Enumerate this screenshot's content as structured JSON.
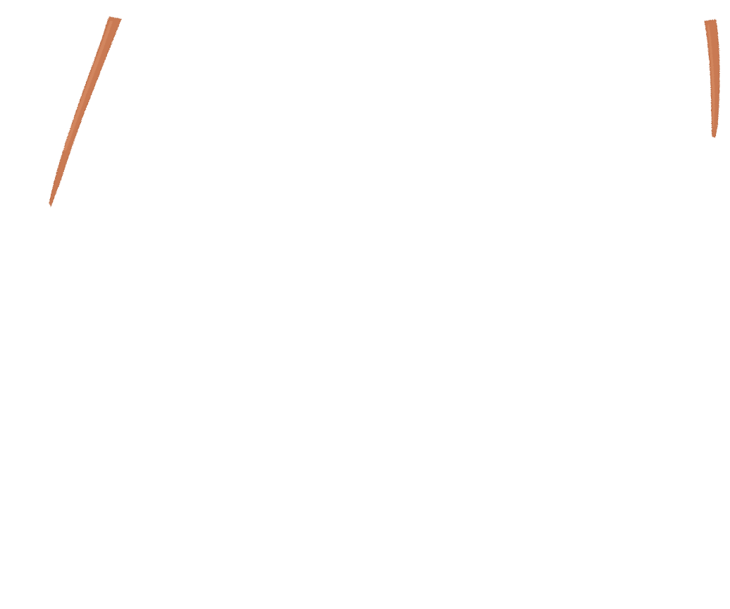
{
  "scene": {
    "background_color": "#ffffff",
    "stroke_color": "#c97a52",
    "stroke_edge_color": "#b8673f",
    "highlight_color": "#d98f68",
    "elements": [
      {
        "name": "left-brush-stroke"
      },
      {
        "name": "right-brush-stroke"
      }
    ]
  }
}
